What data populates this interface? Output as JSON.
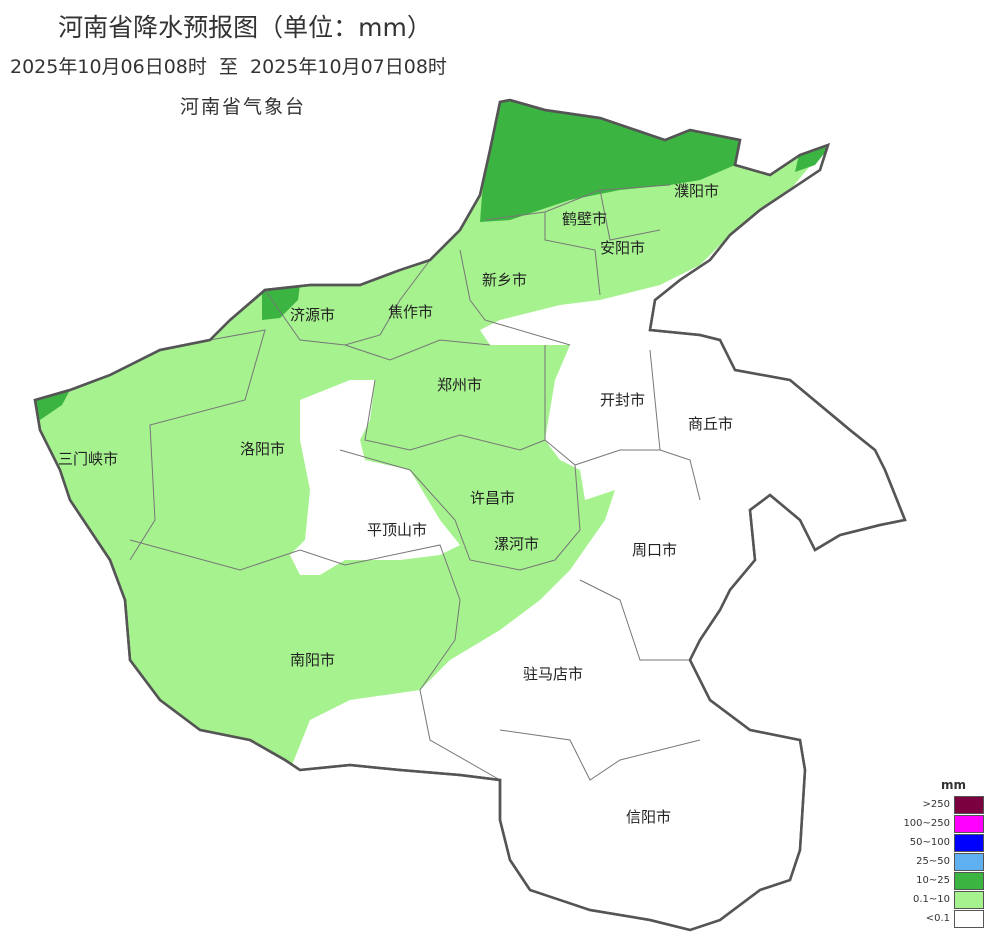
{
  "title": "河南省降水预报图（单位：mm）",
  "subtitle": "2025年10月06日08时  至  2025年10月07日08时",
  "organization": "河南省气象台",
  "cities": [
    "济源市",
    "焦作市",
    "新乡市",
    "鹤壁市",
    "安阳市",
    "濮阳市",
    "三门峡市",
    "洛阳市",
    "郑州市",
    "开封市",
    "商丘市",
    "平顶山市",
    "许昌市",
    "漯河市",
    "周口市",
    "南阳市",
    "驻马店市",
    "信阳市"
  ],
  "legend": {
    "unit": "mm",
    "items": [
      {
        "label": ">250",
        "color": "#7a0040"
      },
      {
        "label": "100~250",
        "color": "#ff00ff"
      },
      {
        "label": "50~100",
        "color": "#0000ff"
      },
      {
        "label": "25~50",
        "color": "#5fb0f0"
      },
      {
        "label": "10~25",
        "color": "#3cb442"
      },
      {
        "label": "0.1~10",
        "color": "#a6f28f"
      },
      {
        "label": "<0.1",
        "color": "#ffffff"
      }
    ]
  }
}
